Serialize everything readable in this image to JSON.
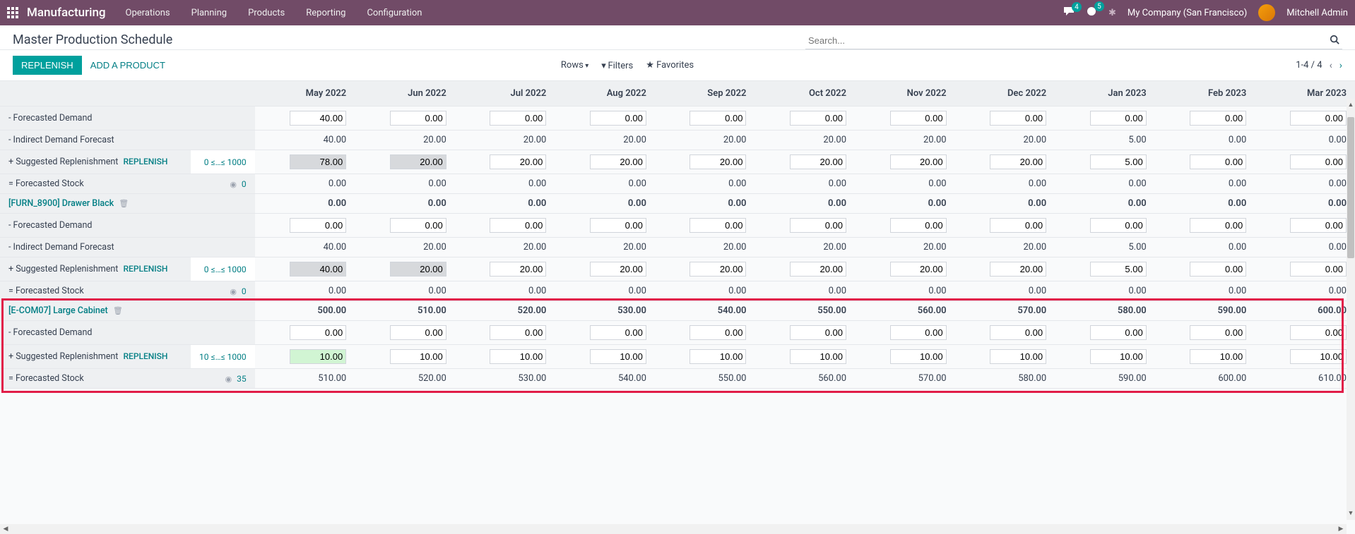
{
  "topbar": {
    "app_name": "Manufacturing",
    "menu": [
      "Operations",
      "Planning",
      "Products",
      "Reporting",
      "Configuration"
    ],
    "msg_badge": "4",
    "activity_badge": "5",
    "company": "My Company (San Francisco)",
    "user": "Mitchell Admin"
  },
  "page": {
    "title": "Master Production Schedule",
    "search_placeholder": "Search...",
    "btn_replenish": "REPLENISH",
    "btn_add_product": "ADD A PRODUCT",
    "rows_label": "Rows",
    "filters_label": "Filters",
    "favorites_label": "Favorites",
    "pager": "1-4 / 4"
  },
  "periods": [
    "May 2022",
    "Jun 2022",
    "Jul 2022",
    "Aug 2022",
    "Sep 2022",
    "Oct 2022",
    "Nov 2022",
    "Dec 2022",
    "Jan 2023",
    "Feb 2023",
    "Mar 2023"
  ],
  "row_labels": {
    "forecasted_demand": "- Forecasted Demand",
    "indirect_demand": "- Indirect Demand Forecast",
    "suggested_replenish": "+ Suggested Replenishment",
    "replenish_link": "REPLENISH",
    "forecasted_stock": "= Forecasted Stock"
  },
  "groups": [
    {
      "product_name": null,
      "rows": [
        {
          "type": "forecasted_demand",
          "input": true,
          "values": [
            "40.00",
            "0.00",
            "0.00",
            "0.00",
            "0.00",
            "0.00",
            "0.00",
            "0.00",
            "0.00",
            "0.00",
            "0.00"
          ]
        },
        {
          "type": "indirect_demand",
          "input": false,
          "values": [
            "40.00",
            "20.00",
            "20.00",
            "20.00",
            "20.00",
            "20.00",
            "20.00",
            "20.00",
            "5.00",
            "0.00",
            "0.00"
          ]
        },
        {
          "type": "suggested_replenish",
          "input": true,
          "constraint": "0 ≤…≤ 1000",
          "grey_first": 2,
          "values": [
            "78.00",
            "20.00",
            "20.00",
            "20.00",
            "20.00",
            "20.00",
            "20.00",
            "20.00",
            "5.00",
            "0.00",
            "0.00"
          ]
        },
        {
          "type": "forecasted_stock",
          "input": false,
          "target": "0",
          "values": [
            "0.00",
            "0.00",
            "0.00",
            "0.00",
            "0.00",
            "0.00",
            "0.00",
            "0.00",
            "0.00",
            "0.00",
            "0.00"
          ]
        }
      ]
    },
    {
      "product_name": "[FURN_8900] Drawer Black",
      "product_header_values": [
        "0.00",
        "0.00",
        "0.00",
        "0.00",
        "0.00",
        "0.00",
        "0.00",
        "0.00",
        "0.00",
        "0.00",
        "0.00"
      ],
      "rows": [
        {
          "type": "forecasted_demand",
          "input": true,
          "values": [
            "0.00",
            "0.00",
            "0.00",
            "0.00",
            "0.00",
            "0.00",
            "0.00",
            "0.00",
            "0.00",
            "0.00",
            "0.00"
          ]
        },
        {
          "type": "indirect_demand",
          "input": false,
          "values": [
            "40.00",
            "20.00",
            "20.00",
            "20.00",
            "20.00",
            "20.00",
            "20.00",
            "20.00",
            "5.00",
            "0.00",
            "0.00"
          ]
        },
        {
          "type": "suggested_replenish",
          "input": true,
          "constraint": "0 ≤…≤ 1000",
          "grey_first": 2,
          "values": [
            "40.00",
            "20.00",
            "20.00",
            "20.00",
            "20.00",
            "20.00",
            "20.00",
            "20.00",
            "5.00",
            "0.00",
            "0.00"
          ]
        },
        {
          "type": "forecasted_stock",
          "input": false,
          "target": "0",
          "values": [
            "0.00",
            "0.00",
            "0.00",
            "0.00",
            "0.00",
            "0.00",
            "0.00",
            "0.00",
            "0.00",
            "0.00",
            "0.00"
          ]
        }
      ]
    },
    {
      "product_name": "[E-COM07] Large Cabinet",
      "product_header_values": [
        "500.00",
        "510.00",
        "520.00",
        "530.00",
        "540.00",
        "550.00",
        "560.00",
        "570.00",
        "580.00",
        "590.00",
        "600.00"
      ],
      "highlighted": true,
      "rows": [
        {
          "type": "forecasted_demand",
          "input": true,
          "values": [
            "0.00",
            "0.00",
            "0.00",
            "0.00",
            "0.00",
            "0.00",
            "0.00",
            "0.00",
            "0.00",
            "0.00",
            "0.00"
          ]
        },
        {
          "type": "suggested_replenish",
          "input": true,
          "constraint": "10 ≤…≤ 1000",
          "green_first": 1,
          "values": [
            "10.00",
            "10.00",
            "10.00",
            "10.00",
            "10.00",
            "10.00",
            "10.00",
            "10.00",
            "10.00",
            "10.00",
            "10.00"
          ]
        },
        {
          "type": "forecasted_stock",
          "input": false,
          "target": "35",
          "values": [
            "510.00",
            "520.00",
            "530.00",
            "540.00",
            "550.00",
            "560.00",
            "570.00",
            "580.00",
            "590.00",
            "600.00",
            "610.00"
          ]
        }
      ]
    }
  ],
  "colors": {
    "topbar_bg": "#714b67",
    "primary_btn": "#00a09d",
    "link": "#017e84",
    "highlight_border": "#e11d48",
    "input_grey": "#d7d9dc",
    "input_green": "#d1f5d3",
    "header_bg": "#eef0f2"
  }
}
